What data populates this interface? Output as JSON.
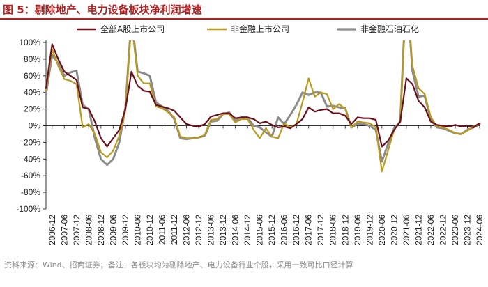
{
  "title": "图 5：剔除地产、电力设备板块净利润增速",
  "source_note": "资料来源：Wind、招商证券；备注：各板块均为剔除地产、电力设备行业个股，采用一致可比口径计算",
  "chart_data": {
    "type": "line",
    "ylim": [
      -100,
      100
    ],
    "y_ticks": [
      -100,
      -80,
      -60,
      -40,
      -20,
      0,
      20,
      40,
      60,
      80,
      100
    ],
    "y_tick_format": "percent",
    "grid": false,
    "legend_position": "top",
    "x_tick_labels": [
      "2006-12",
      "2007-06",
      "2007-12",
      "2008-06",
      "2008-12",
      "2009-06",
      "2009-12",
      "2010-06",
      "2010-12",
      "2011-06",
      "2011-12",
      "2012-06",
      "2012-12",
      "2013-06",
      "2013-12",
      "2014-06",
      "2014-12",
      "2015-06",
      "2015-12",
      "2016-06",
      "2016-12",
      "2017-06",
      "2017-12",
      "2018-06",
      "2018-12",
      "2019-06",
      "2019-12",
      "2020-06",
      "2020-12",
      "2021-06",
      "2021-12",
      "2022-06",
      "2022-12",
      "2023-06",
      "2023-12",
      "2024-06"
    ],
    "x": [
      "2006-09",
      "2006-12",
      "2007-03",
      "2007-06",
      "2007-09",
      "2007-12",
      "2008-03",
      "2008-06",
      "2008-09",
      "2008-12",
      "2009-03",
      "2009-06",
      "2009-09",
      "2009-12",
      "2010-03",
      "2010-06",
      "2010-09",
      "2010-12",
      "2011-03",
      "2011-06",
      "2011-09",
      "2011-12",
      "2012-03",
      "2012-06",
      "2012-09",
      "2012-12",
      "2013-03",
      "2013-06",
      "2013-09",
      "2013-12",
      "2014-03",
      "2014-06",
      "2014-09",
      "2014-12",
      "2015-03",
      "2015-06",
      "2015-09",
      "2015-12",
      "2016-03",
      "2016-06",
      "2016-09",
      "2016-12",
      "2017-03",
      "2017-06",
      "2017-09",
      "2017-12",
      "2018-03",
      "2018-06",
      "2018-09",
      "2018-12",
      "2019-03",
      "2019-06",
      "2019-09",
      "2019-12",
      "2020-03",
      "2020-06",
      "2020-09",
      "2020-12",
      "2021-03",
      "2021-06",
      "2021-09",
      "2021-12",
      "2022-03",
      "2022-06",
      "2022-09",
      "2022-12",
      "2023-03",
      "2023-06",
      "2023-09",
      "2023-12",
      "2024-03",
      "2024-06"
    ],
    "series": [
      {
        "name": "全部A股上市公司",
        "color": "#6b0f1a",
        "width": 2.2,
        "values": [
          45,
          98,
          80,
          65,
          60,
          55,
          22,
          20,
          5,
          -15,
          -25,
          -15,
          -5,
          20,
          65,
          48,
          42,
          41,
          25,
          23,
          21,
          18,
          10,
          2,
          0,
          -1,
          2,
          11,
          13,
          15,
          15,
          9,
          10,
          10,
          8,
          3,
          5,
          1,
          -2,
          -1,
          -3,
          2,
          8,
          22,
          17,
          19,
          20,
          15,
          15,
          12,
          2,
          10,
          9,
          9,
          7,
          -25,
          -18,
          -5,
          5,
          57,
          50,
          30,
          22,
          5,
          1,
          0,
          -1,
          1,
          -1,
          0,
          -2,
          3
        ]
      },
      {
        "name": "非金融上市公司",
        "color": "#b89a1e",
        "width": 2.2,
        "values": [
          42,
          92,
          72,
          56,
          54,
          50,
          -2,
          2,
          -10,
          -32,
          -38,
          -30,
          -12,
          18,
          125,
          60,
          51,
          51,
          23,
          21,
          16,
          10,
          -13,
          -15,
          -15,
          -14,
          -11,
          7,
          8,
          14,
          14,
          4,
          8,
          8,
          -5,
          -15,
          -3,
          -13,
          -15,
          3,
          -2,
          2,
          28,
          57,
          35,
          40,
          38,
          20,
          26,
          20,
          -2,
          5,
          4,
          3,
          -2,
          -55,
          -30,
          -5,
          5,
          170,
          72,
          45,
          38,
          11,
          -1,
          -2,
          -5,
          -9,
          -10,
          -6,
          -1,
          3
        ]
      },
      {
        "name": "非金融石油石化",
        "color": "#8c8c8c",
        "width": 3.0,
        "values": [
          38,
          85,
          75,
          60,
          64,
          66,
          25,
          20,
          -15,
          -40,
          -47,
          -40,
          -20,
          22,
          130,
          65,
          63,
          60,
          28,
          23,
          18,
          8,
          -15,
          -16,
          -15,
          -14,
          -12,
          5,
          6,
          14,
          16,
          6,
          10,
          10,
          0,
          -2,
          -8,
          -13,
          10,
          2,
          13,
          25,
          40,
          37,
          40,
          40,
          23,
          24,
          22,
          21,
          -2,
          2,
          2,
          0,
          -5,
          -43,
          -22,
          -3,
          5,
          170,
          66,
          35,
          36,
          7,
          -2,
          -3,
          -6,
          -9,
          -10,
          -5,
          -2,
          2
        ]
      }
    ]
  }
}
